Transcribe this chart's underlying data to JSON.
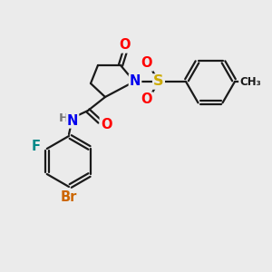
{
  "bg_color": "#ebebeb",
  "bond_color": "#1a1a1a",
  "bond_width": 1.6,
  "atom_colors": {
    "O": "#ff0000",
    "N": "#0000ee",
    "S": "#ccaa00",
    "F": "#008888",
    "Br": "#cc6600",
    "H": "#777777",
    "C": "#1a1a1a"
  },
  "font_size": 10.5,
  "small_font": 9.5
}
